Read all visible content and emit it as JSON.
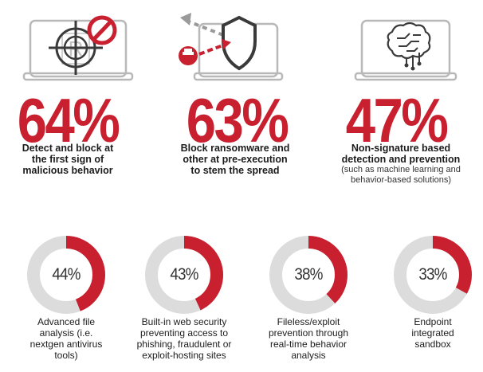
{
  "colors": {
    "accent": "#c8202f",
    "track": "#dcdcdc",
    "icon_gray": "#9a9a9a",
    "dark": "#3a3a3a"
  },
  "chart_data": [
    {
      "type": "stat",
      "stats": [
        {
          "value": 64,
          "label": "64%",
          "text": "Detect and block at the first sign of malicious behavior",
          "subtext": "",
          "icon": "crosshair-block-icon"
        },
        {
          "value": 63,
          "label": "63%",
          "text": "Block ransomware and other at pre-execution to stem the spread",
          "subtext": "",
          "icon": "shield-deflect-icon"
        },
        {
          "value": 47,
          "label": "47%",
          "text": "Non-signature based detection and prevention",
          "subtext": "(such as machine learning and behavior-based solutions)",
          "icon": "ai-brain-icon"
        }
      ]
    },
    {
      "type": "pie",
      "variant": "donut",
      "series": [
        {
          "value": 44,
          "label": "44%",
          "text": "Advanced file analysis (i.e. nextgen antivirus tools)"
        },
        {
          "value": 43,
          "label": "43%",
          "text": "Built-in web security preventing access to phishing, fraudulent or exploit-hosting sites"
        },
        {
          "value": 38,
          "label": "38%",
          "text": "Fileless/exploit prevention through real-time behavior analysis"
        },
        {
          "value": 33,
          "label": "33%",
          "text": "Endpoint integrated sandbox"
        }
      ]
    }
  ]
}
